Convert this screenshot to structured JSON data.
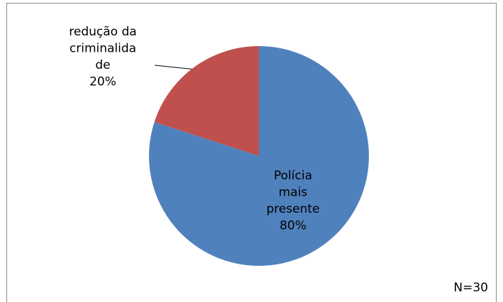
{
  "chart_data": {
    "type": "pie",
    "categories": [
      "Polícia mais presente",
      "redução da criminalidade"
    ],
    "values": [
      80,
      20
    ],
    "value_labels": [
      "80%",
      "20%"
    ],
    "colors": [
      "#4f81bd",
      "#c0504d"
    ],
    "annotation": "N=30"
  }
}
